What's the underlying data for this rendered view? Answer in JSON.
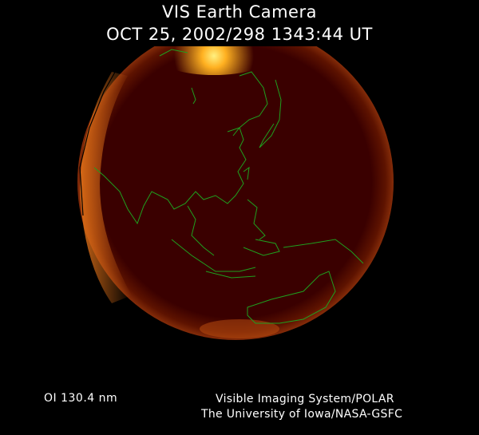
{
  "header": {
    "title": "VIS Earth Camera",
    "timestamp": "OCT 25, 2002/298 1343:44 UT"
  },
  "footer": {
    "filter": "OI  130.4 nm",
    "instrument": "Visible Imaging System/POLAR",
    "institution": "The University of Iowa/NASA-GSFC"
  },
  "colors": {
    "background": "#000000",
    "disk": "#3a0000",
    "aurora": "#ffb020",
    "coastline": "#1fa01f",
    "terminator": "#000000"
  }
}
